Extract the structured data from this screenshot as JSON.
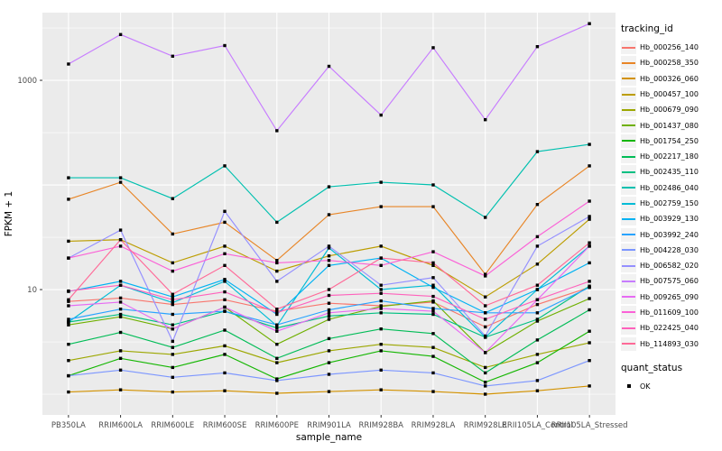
{
  "figure": {
    "bg": "#FFFFFF",
    "panel_bg": "#EBEBEB",
    "grid_color": "#FFFFFF",
    "tick_color": "#333333",
    "tick_label_color": "#4D4D4D",
    "axis_title_color": "#000000",
    "point_color": "#000000",
    "legend_key_bg": "#F2F2F2"
  },
  "legend": {
    "tracking_title": "tracking_id",
    "quant_title": "quant_status",
    "quant_label": "OK"
  },
  "chart_data": {
    "type": "line",
    "title": "",
    "xlabel": "sample_name",
    "ylabel": "FPKM + 1",
    "y_scale": "log10",
    "ylim": [
      0.634,
      4435
    ],
    "y_ticks": [
      10,
      1000
    ],
    "y_tick_labels": [
      "10",
      "1000"
    ],
    "y_major_gridlines": [
      10,
      100,
      1000
    ],
    "y_minor_gridlines": [
      1,
      3.162,
      31.62,
      316.2,
      3162
    ],
    "grid": true,
    "legend_position": "right",
    "legend_title": "tracking_id",
    "point_shape": "square",
    "quant_status": {
      "title": "quant_status",
      "values": [
        "OK"
      ]
    },
    "categories": [
      "PB350LA",
      "RRIM600LA",
      "RRIM600LE",
      "RRIM600SE",
      "RRIM600PE",
      "RRIM901LA",
      "RRIM928BA",
      "RRIM928LA",
      "RRIM928LE",
      "RRII105LA_Control",
      "RRII105LA_Stressed"
    ],
    "series": [
      {
        "name": "Hb_000256_140",
        "color": "#F8766D",
        "values": [
          7.7,
          8.3,
          7.2,
          8.0,
          6.2,
          7.4,
          7.0,
          7.6,
          4.4,
          7.2,
          10.5
        ]
      },
      {
        "name": "Hb_000258_350",
        "color": "#E88526",
        "values": [
          73,
          106,
          34,
          44,
          19,
          52,
          62,
          62,
          14,
          65,
          152
        ]
      },
      {
        "name": "Hb_000326_060",
        "color": "#D39200",
        "values": [
          1.05,
          1.1,
          1.05,
          1.08,
          1.02,
          1.06,
          1.1,
          1.06,
          1.0,
          1.08,
          1.2
        ]
      },
      {
        "name": "Hb_000457_100",
        "color": "#BC9D00",
        "values": [
          29,
          30,
          18,
          26,
          15,
          21,
          26,
          17,
          8.5,
          17.5,
          47
        ]
      },
      {
        "name": "Hb_000679_090",
        "color": "#9CA700",
        "values": [
          2.1,
          2.6,
          2.4,
          2.9,
          2.0,
          2.6,
          3.0,
          2.8,
          1.8,
          2.4,
          3.1
        ]
      },
      {
        "name": "Hb_001437_080",
        "color": "#6FB000",
        "values": [
          4.6,
          5.5,
          4.2,
          6.8,
          3.0,
          5.2,
          6.9,
          7.8,
          2.5,
          5.0,
          8.2
        ]
      },
      {
        "name": "Hb_001754_250",
        "color": "#13B600",
        "values": [
          1.5,
          2.2,
          1.8,
          2.4,
          1.4,
          2.0,
          2.6,
          2.3,
          1.3,
          2.0,
          4.0
        ]
      },
      {
        "name": "Hb_002217_180",
        "color": "#00BC56",
        "values": [
          3.0,
          3.9,
          2.8,
          4.1,
          2.2,
          3.4,
          4.2,
          3.8,
          1.6,
          3.3,
          6.4
        ]
      },
      {
        "name": "Hb_002435_110",
        "color": "#00C082",
        "values": [
          4.9,
          5.8,
          4.6,
          6.2,
          4.3,
          5.6,
          6.0,
          5.8,
          3.5,
          5.2,
          10.8
        ]
      },
      {
        "name": "Hb_002486_040",
        "color": "#00C0AF",
        "values": [
          117,
          117,
          74,
          152,
          44,
          96,
          106,
          100,
          49,
          208,
          244
        ]
      },
      {
        "name": "Hb_002759_150",
        "color": "#00BCD6",
        "values": [
          4.9,
          11,
          7.5,
          12,
          4.5,
          25,
          10,
          11,
          3.5,
          10,
          26
        ]
      },
      {
        "name": "Hb_003929_130",
        "color": "#00B2F3",
        "values": [
          9.6,
          12,
          8.5,
          12.5,
          5.8,
          17,
          20,
          10.5,
          6.0,
          10,
          18
        ]
      },
      {
        "name": "Hb_003992_240",
        "color": "#29A3FF",
        "values": [
          5.2,
          6.5,
          5.8,
          6.2,
          4.6,
          6.4,
          7.8,
          6.6,
          6.0,
          6.0,
          10.5
        ]
      },
      {
        "name": "Hb_004228_030",
        "color": "#7C96FF",
        "values": [
          1.5,
          1.7,
          1.45,
          1.6,
          1.35,
          1.55,
          1.7,
          1.6,
          1.2,
          1.35,
          2.1
        ]
      },
      {
        "name": "Hb_006582_020",
        "color": "#9590FF",
        "values": [
          20,
          37,
          3.2,
          56,
          12,
          26,
          11,
          13,
          3.6,
          26,
          50
        ]
      },
      {
        "name": "Hb_007575_060",
        "color": "#C77CFF",
        "values": [
          1430,
          2740,
          1700,
          2150,
          330,
          1360,
          465,
          2050,
          420,
          2100,
          3480
        ]
      },
      {
        "name": "Hb_009265_090",
        "color": "#E76BF3",
        "values": [
          7.0,
          7.6,
          4.2,
          6.8,
          4.0,
          6.0,
          6.6,
          6.2,
          2.5,
          8.0,
          26
        ]
      },
      {
        "name": "Hb_011609_100",
        "color": "#FB61D7",
        "values": [
          20,
          26,
          15,
          22,
          18,
          19,
          17,
          23,
          13.5,
          32,
          70
        ]
      },
      {
        "name": "Hb_022425_040",
        "color": "#FF62BC",
        "values": [
          9.7,
          11,
          8.0,
          9.5,
          6.0,
          8.8,
          9.2,
          8.6,
          5.2,
          8.0,
          12
        ]
      },
      {
        "name": "Hb_114893_030",
        "color": "#FF6A98",
        "values": [
          8.0,
          30,
          9.0,
          17,
          6.5,
          10,
          20,
          18,
          7.0,
          11,
          28
        ]
      }
    ]
  }
}
